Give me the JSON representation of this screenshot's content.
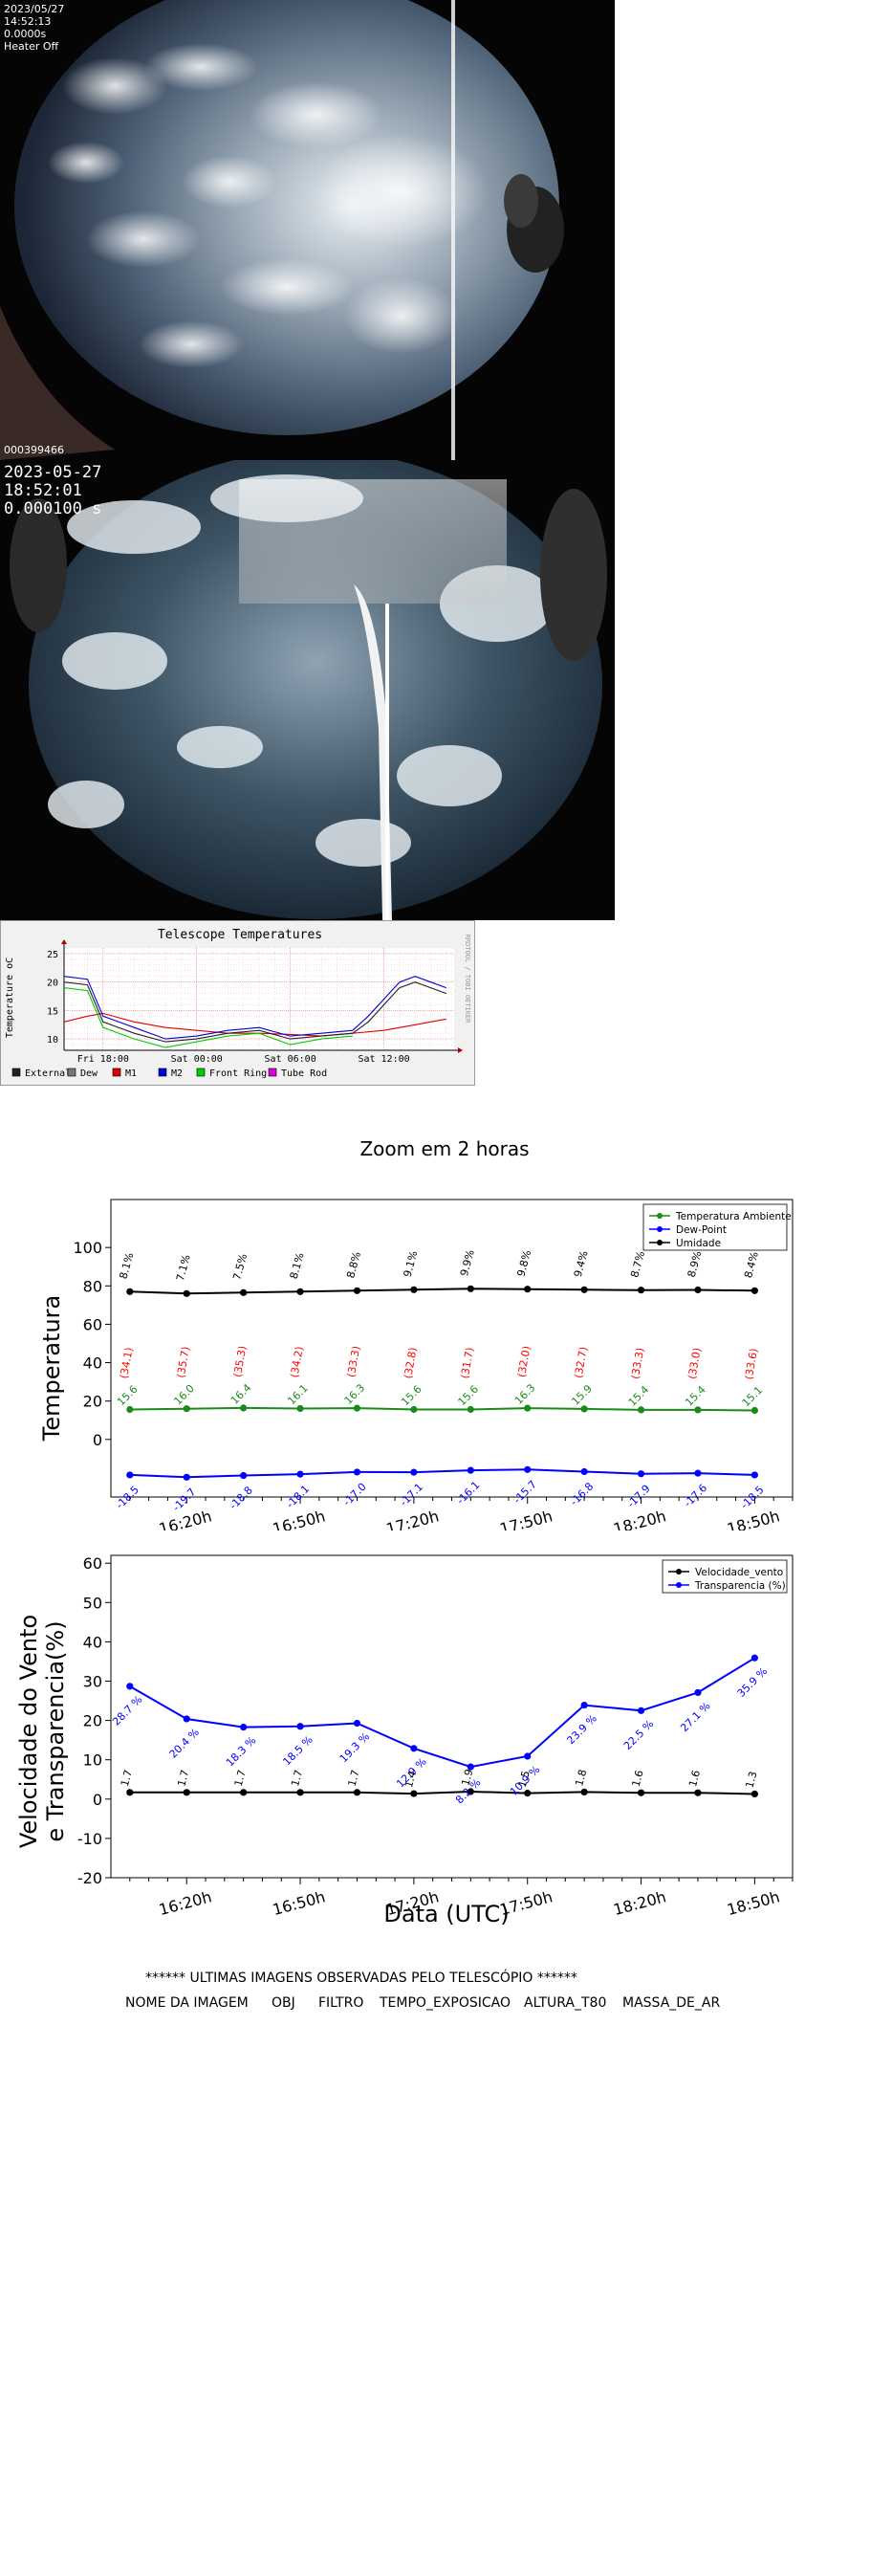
{
  "allsky_camera_1": {
    "date": "2023/05/27",
    "time": "14:52:13",
    "exposure": "0.0000s",
    "heater": "Heater Off",
    "frame_id": "000399466"
  },
  "allsky_camera_2": {
    "date": "2023-05-27",
    "time": "18:52:01",
    "exposure": "0.000100 s"
  },
  "telescope_temperatures": {
    "title": "Telescope Temperatures",
    "ylabel": "Temperature oC",
    "side_label": "RRDTOOL / TOBI OETIKER",
    "yticks": [
      "25",
      "20",
      "15",
      "10"
    ],
    "xticks": [
      "Fri 18:00",
      "Sat 00:00",
      "Sat 06:00",
      "Sat 12:00"
    ],
    "legend": [
      {
        "label": "External",
        "color": "#222222"
      },
      {
        "label": "Dew",
        "color": "#777777"
      },
      {
        "label": "M1",
        "color": "#e00000"
      },
      {
        "label": "M2",
        "color": "#0000dd"
      },
      {
        "label": "Front Ring",
        "color": "#00cc00"
      },
      {
        "label": "Tube Rod",
        "color": "#dd00dd"
      }
    ],
    "chart_data": {
      "type": "line",
      "title": "Telescope Temperatures",
      "ylabel": "Temperature oC",
      "x_range_hours_from_fri_18": [
        -2.5,
        22.5
      ],
      "ylim": [
        8,
        26
      ],
      "series": [
        {
          "name": "M1",
          "color": "#e00000",
          "x": [
            -2.5,
            -1,
            0,
            2,
            4,
            6,
            8,
            10,
            12,
            14,
            16,
            18,
            20,
            22
          ],
          "y": [
            13,
            14,
            14.5,
            13,
            12,
            11.5,
            11,
            11,
            10.8,
            10.5,
            11,
            11.5,
            12.5,
            13.5
          ]
        },
        {
          "name": "M2",
          "color": "#0000dd",
          "x": [
            -2.5,
            -1,
            0,
            2,
            4,
            6,
            8,
            10,
            12,
            14,
            16,
            17,
            18,
            19,
            20,
            21,
            22
          ],
          "y": [
            21,
            20.5,
            14,
            12,
            10,
            10.5,
            11.5,
            12,
            10.5,
            11,
            11.5,
            14,
            17,
            20,
            21,
            20,
            19
          ]
        },
        {
          "name": "External",
          "color": "#222222",
          "x": [
            -2.5,
            -1,
            0,
            2,
            4,
            6,
            8,
            10,
            12,
            14,
            16,
            17,
            18,
            19,
            20,
            21,
            22
          ],
          "y": [
            20,
            19.5,
            13,
            11,
            9.5,
            10,
            11,
            11.5,
            10,
            10.5,
            11,
            13,
            16,
            19,
            20,
            19,
            18
          ]
        },
        {
          "name": "Front Ring",
          "color": "#00cc00",
          "x": [
            -2.5,
            -1,
            0,
            2,
            4,
            6,
            8,
            10,
            12,
            14,
            16
          ],
          "y": [
            19,
            18.5,
            12,
            10,
            8.5,
            9.5,
            10.5,
            11,
            9,
            10,
            10.5
          ]
        }
      ]
    }
  },
  "zoom_chart": {
    "title": "Zoom em 2 horas",
    "ylabel": "Temperatura",
    "legend": [
      {
        "label": "Temperatura Ambiente",
        "color": "#1a8a1a"
      },
      {
        "label": "Dew-Point",
        "color": "#0000ff"
      },
      {
        "label": "Umidade",
        "color": "#000000"
      }
    ],
    "yticks": [
      "100",
      "80",
      "60",
      "40",
      "20",
      "0"
    ],
    "xticks": [
      "16:20h",
      "16:50h",
      "17:20h",
      "17:50h",
      "18:20h",
      "18:50h"
    ],
    "chart_data": {
      "type": "line",
      "title": "Zoom em 2 horas",
      "xlabel": "",
      "ylabel": "Temperatura",
      "ylim": [
        -30,
        125
      ],
      "x_minutes_after_1600": [
        5,
        20,
        35,
        50,
        65,
        80,
        95,
        110,
        125,
        140,
        155,
        170
      ],
      "series": [
        {
          "name": "Umidade",
          "color": "#000000",
          "values": [
            77.0,
            76.0,
            76.5,
            77.0,
            77.5,
            78.0,
            78.5,
            78.3,
            78.0,
            77.8,
            77.9,
            77.5
          ]
        },
        {
          "name": "Temperatura Ambiente",
          "color": "#1a8a1a",
          "values": [
            15.6,
            16.0,
            16.4,
            16.1,
            16.3,
            15.6,
            15.6,
            16.3,
            15.9,
            15.4,
            15.4,
            15.1
          ]
        },
        {
          "name": "Dew-Point",
          "color": "#0000ff",
          "values": [
            -18.5,
            -19.7,
            -18.8,
            -18.1,
            -17.0,
            -17.1,
            -16.1,
            -15.7,
            -16.8,
            -17.9,
            -17.6,
            -18.5
          ]
        }
      ],
      "labels_black": [
        "8.1%",
        "7.1%",
        "7.5%",
        "8.1%",
        "8.8%",
        "9.1%",
        "9.9%",
        "9.8%",
        "9.4%",
        "8.7%",
        "8.9%",
        "8.4%"
      ],
      "labels_red": [
        "(34.1)",
        "(35.7)",
        "(35.3)",
        "(34.2)",
        "(33.3)",
        "(32.8)",
        "(31.7)",
        "(32.0)",
        "(32.7)",
        "(33.3)",
        "(33.0)",
        "(33.6)"
      ],
      "labels_green": [
        "15.6",
        "16.0",
        "16.4",
        "16.1",
        "16.3",
        "15.6",
        "15.6",
        "16.3",
        "15.9",
        "15.4",
        "15.4",
        "15.1"
      ],
      "labels_blue": [
        "-18.5",
        "-19.7",
        "-18.8",
        "-18.1",
        "-17.0",
        "-17.1",
        "-16.1",
        "-15.7",
        "-16.8",
        "-17.9",
        "-17.6",
        "-18.5"
      ]
    }
  },
  "wind_chart": {
    "ylabel_line1": "Velocidade do Vento",
    "ylabel_line2": "e Transparencia(%)",
    "xlabel": "Data (UTC)",
    "legend": [
      {
        "label": "Velocidade_vento",
        "color": "#000000"
      },
      {
        "label": "Transparencia (%)",
        "color": "#0000ff"
      }
    ],
    "yticks": [
      "60",
      "50",
      "40",
      "30",
      "20",
      "10",
      "0",
      "-10",
      "-20"
    ],
    "xticks": [
      "16:20h",
      "16:50h",
      "17:20h",
      "17:50h",
      "18:20h",
      "18:50h"
    ],
    "chart_data": {
      "type": "line",
      "xlabel": "Data (UTC)",
      "ylabel": "Velocidade do Vento e Transparencia(%)",
      "ylim": [
        -20,
        62
      ],
      "x_minutes_after_1600": [
        5,
        20,
        35,
        50,
        65,
        80,
        95,
        110,
        125,
        140,
        155,
        170
      ],
      "series": [
        {
          "name": "Transparencia (%)",
          "color": "#0000ff",
          "values": [
            28.7,
            20.4,
            18.3,
            18.5,
            19.3,
            12.9,
            8.2,
            10.9,
            23.9,
            22.5,
            27.1,
            35.9
          ]
        },
        {
          "name": "Velocidade_vento",
          "color": "#000000",
          "values": [
            1.7,
            1.7,
            1.7,
            1.7,
            1.7,
            1.4,
            1.9,
            1.5,
            1.8,
            1.6,
            1.6,
            1.3
          ]
        }
      ],
      "labels_blue": [
        "28.7 %",
        "20.4 %",
        "18.3 %",
        "18.5 %",
        "19.3 %",
        "12.9 %",
        "8.2 %",
        "10.9 %",
        "23.9 %",
        "22.5 %",
        "27.1 %",
        "35.9 %"
      ],
      "labels_black": [
        "1.7",
        "1.7",
        "1.7",
        "1.7",
        "1.7",
        "1.4",
        "1.9",
        "1.5",
        "1.8",
        "1.6",
        "1.6",
        "1.3"
      ]
    }
  },
  "footer": {
    "heading": "****** ULTIMAS IMAGENS OBSERVADAS PELO TELESCÓPIO ******",
    "columns": [
      "NOME DA IMAGEM",
      "OBJ",
      "FILTRO",
      "TEMPO_EXPOSICAO",
      "ALTURA_T80",
      "MASSA_DE_AR"
    ]
  }
}
